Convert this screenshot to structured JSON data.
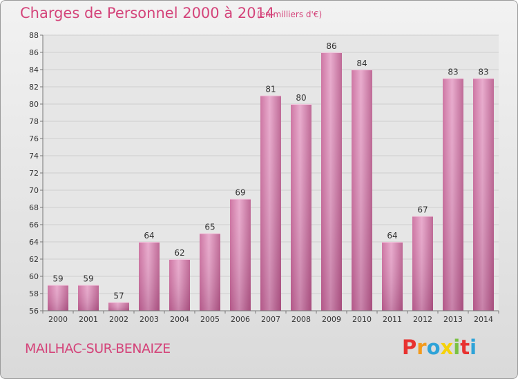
{
  "chart_data": {
    "type": "bar",
    "title": "Charges de Personnel 2000 à 2014",
    "subtitle": "(en milliers d'€)",
    "xlabel": "",
    "ylabel": "",
    "categories": [
      "2000",
      "2001",
      "2002",
      "2003",
      "2004",
      "2005",
      "2006",
      "2007",
      "2008",
      "2009",
      "2010",
      "2011",
      "2012",
      "2013",
      "2014"
    ],
    "values": [
      59,
      59,
      57,
      64,
      62,
      65,
      69,
      81,
      80,
      86,
      84,
      64,
      67,
      83,
      83
    ],
    "ylim": [
      56,
      88
    ],
    "yticks": [
      56,
      58,
      60,
      62,
      64,
      66,
      68,
      70,
      72,
      74,
      76,
      78,
      80,
      82,
      84,
      86,
      88
    ],
    "grid": true,
    "bar_color": "#d77aab"
  },
  "location": "MAILHAC-SUR-BENAIZE",
  "brand": {
    "letters": [
      "P",
      "r",
      "o",
      "x",
      "i",
      "t",
      "i"
    ],
    "colors": [
      "#e8312f",
      "#f39a1c",
      "#2ea3d8",
      "#f5d20a",
      "#7ac143",
      "#e8312f",
      "#2ea3d8"
    ]
  }
}
